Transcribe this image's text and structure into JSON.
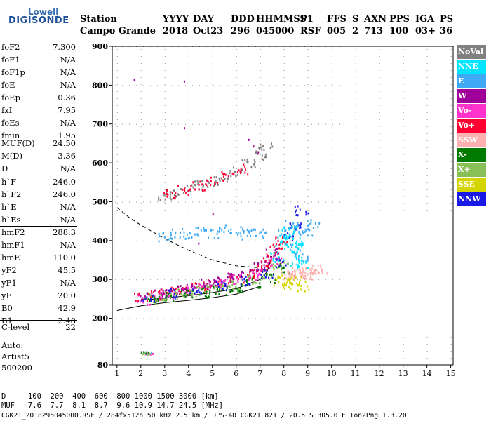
{
  "logo": {
    "top": "Lowell",
    "bottom": "DIGISONDE"
  },
  "header": {
    "labels": [
      "Station",
      "YYYY",
      "DAY",
      "DDD",
      "HHMMSS",
      "P1",
      "FFS",
      "S",
      "AXN",
      "PPS",
      "IGA",
      "PS"
    ],
    "values": [
      "Campo Grande",
      "2018",
      "Oct23",
      "296",
      "045000",
      "RSF",
      "005",
      "2",
      "713",
      "100",
      "03+",
      "36"
    ]
  },
  "params_group1": [
    {
      "name": "foF2",
      "value": "7.300"
    },
    {
      "name": "foF1",
      "value": "N/A"
    },
    {
      "name": "foF1p",
      "value": "N/A"
    },
    {
      "name": "foE",
      "value": "N/A"
    },
    {
      "name": "foEp",
      "value": "0.36"
    },
    {
      "name": "fxI",
      "value": "7.95"
    },
    {
      "name": "foEs",
      "value": "N/A"
    },
    {
      "name": "fmin",
      "value": "1.95"
    }
  ],
  "params_group2": [
    {
      "name": "MUF(D)",
      "value": "24.50"
    },
    {
      "name": "M(D)",
      "value": "3.36"
    },
    {
      "name": "D",
      "value": "N/A"
    }
  ],
  "params_group3": [
    {
      "name": "h`F",
      "value": "246.0"
    },
    {
      "name": "h`F2",
      "value": "246.0"
    },
    {
      "name": "h`E",
      "value": "N/A"
    },
    {
      "name": "h`Es",
      "value": "N/A"
    }
  ],
  "params_group4": [
    {
      "name": "hmF2",
      "value": "288.3"
    },
    {
      "name": "hmF1",
      "value": "N/A"
    },
    {
      "name": "hmE",
      "value": "110.0"
    },
    {
      "name": "yF2",
      "value": "45.5"
    },
    {
      "name": "yF1",
      "value": "N/A"
    },
    {
      "name": "yE",
      "value": "20.0"
    },
    {
      "name": "B0",
      "value": "42.9"
    },
    {
      "name": "B1",
      "value": "2.48"
    }
  ],
  "clevel": {
    "name": "C-level",
    "value": "22"
  },
  "autoscaler": {
    "line1": "Auto:",
    "line2": "Artist5",
    "line3": "500200"
  },
  "legend": [
    {
      "label": "NoVal",
      "color": "#808080"
    },
    {
      "label": "NNE",
      "color": "#00e5ff"
    },
    {
      "label": "E",
      "color": "#3fa9f5"
    },
    {
      "label": "W",
      "color": "#a0009a"
    },
    {
      "label": "Vo-",
      "color": "#ff33cc"
    },
    {
      "label": "Vo+",
      "color": "#ff0033"
    },
    {
      "label": "SSW",
      "color": "#ffb0b0"
    },
    {
      "label": "X-",
      "color": "#007a00"
    },
    {
      "label": "X+",
      "color": "#88c057"
    },
    {
      "label": "SSE",
      "color": "#d4d400"
    },
    {
      "label": "NNW",
      "color": "#1a1ae6"
    }
  ],
  "footer": {
    "line1": "D     100  200  400  600  800 1000 1500 3000 [km]",
    "line2": "MUF   7.6  7.7  8.1  8.7  9.6 10.9 14.7 24.5 [MHz]",
    "line3": "CGK21_2018296045000.RSF / 284fx512h 50 kHz 2.5 km / DPS-4D CGK21 821 / 20.5 S 305.0 E Ion2Png 1.3.20"
  },
  "chart_data": {
    "type": "scatter",
    "title": "",
    "xlabel": "",
    "ylabel": "",
    "xlim": [
      0.8,
      15.1
    ],
    "ylim": [
      80,
      900
    ],
    "x_ticks": [
      1,
      2,
      3,
      4,
      5,
      6,
      7,
      8,
      9,
      10,
      11,
      12,
      13,
      14,
      15
    ],
    "y_ticks": [
      80,
      200,
      300,
      400,
      500,
      600,
      700,
      800,
      900
    ],
    "series": [
      {
        "name": "Vo+ (F-trace)",
        "color": "#ff0033",
        "x": [
          2.0,
          2.5,
          3.0,
          3.5,
          4.0,
          4.5,
          5.0,
          5.5,
          6.0,
          6.5,
          7.0,
          7.3,
          7.5,
          7.7,
          7.9
        ],
        "y": [
          255,
          262,
          268,
          272,
          278,
          283,
          290,
          297,
          305,
          315,
          330,
          345,
          360,
          380,
          400
        ]
      },
      {
        "name": "Vo- (F-trace)",
        "color": "#ff33cc",
        "x": [
          2.1,
          2.6,
          3.1,
          3.6,
          4.1,
          4.6,
          5.1,
          5.6,
          6.1,
          6.6,
          7.1,
          7.6
        ],
        "y": [
          250,
          258,
          264,
          270,
          275,
          282,
          288,
          295,
          303,
          312,
          325,
          350
        ]
      },
      {
        "name": "W",
        "color": "#a0009a",
        "x": [
          2.2,
          2.8,
          3.4,
          4.0,
          4.6,
          5.2,
          5.8,
          6.4,
          7.0,
          7.5
        ],
        "y": [
          260,
          268,
          275,
          282,
          290,
          297,
          305,
          318,
          335,
          370
        ]
      },
      {
        "name": "X+",
        "color": "#88c057",
        "x": [
          2.4,
          3.0,
          3.6,
          4.2,
          4.8,
          5.4,
          6.0,
          6.6,
          7.2,
          7.8
        ],
        "y": [
          252,
          258,
          264,
          270,
          276,
          282,
          290,
          300,
          312,
          340
        ]
      },
      {
        "name": "X-",
        "color": "#007a00",
        "x": [
          2.5,
          3.2,
          3.9,
          4.6,
          5.3,
          6.0,
          6.7,
          7.4,
          8.0
        ],
        "y": [
          250,
          256,
          262,
          268,
          275,
          283,
          292,
          305,
          330
        ]
      },
      {
        "name": "NNW",
        "color": "#1a1ae6",
        "x": [
          2.3,
          3.3,
          4.3,
          5.3,
          6.3,
          7.3,
          7.8,
          8.1,
          8.5,
          8.7
        ],
        "y": [
          256,
          266,
          276,
          286,
          298,
          318,
          345,
          410,
          440,
          480
        ]
      },
      {
        "name": "E",
        "color": "#3fa9f5",
        "x": [
          3.0,
          3.5,
          4.0,
          4.5,
          5.0,
          5.5,
          6.0,
          6.5,
          7.0,
          8.0,
          8.3,
          8.6,
          8.9,
          9.2,
          8.4,
          8.7
        ],
        "y": [
          410,
          420,
          415,
          425,
          420,
          430,
          425,
          418,
          422,
          420,
          440,
          430,
          425,
          445,
          380,
          360
        ]
      },
      {
        "name": "NNE",
        "color": "#00e5ff",
        "x": [
          7.7,
          7.9,
          8.1,
          8.3,
          8.5,
          8.7,
          8.2,
          8.6
        ],
        "y": [
          360,
          390,
          410,
          380,
          350,
          340,
          430,
          400
        ]
      },
      {
        "name": "SSW",
        "color": "#ffb0b0",
        "x": [
          8.1,
          8.4,
          8.7,
          9.0,
          9.3,
          9.5,
          8.6,
          8.9
        ],
        "y": [
          315,
          320,
          322,
          318,
          325,
          330,
          310,
          312
        ]
      },
      {
        "name": "SSE",
        "color": "#d4d400",
        "x": [
          7.8,
          8.0,
          8.2,
          8.5,
          8.8
        ],
        "y": [
          295,
          300,
          290,
          298,
          285
        ]
      },
      {
        "name": "NoVal",
        "color": "#808080",
        "x": [
          3.0,
          3.5,
          4.0,
          4.5,
          5.0,
          5.5,
          6.0,
          6.5,
          7.0,
          7.2
        ],
        "y": [
          518,
          525,
          535,
          545,
          555,
          565,
          580,
          600,
          620,
          640
        ]
      },
      {
        "name": "Vo+ (2nd hop)",
        "color": "#ff0033",
        "x": [
          3.2,
          3.8,
          4.4,
          5.0,
          5.6,
          6.2
        ],
        "y": [
          522,
          532,
          542,
          555,
          568,
          585
        ]
      }
    ],
    "lines": [
      {
        "name": "dashed",
        "style": "dashed",
        "x": [
          1.0,
          1.5,
          2.0,
          3.0,
          4.0,
          5.0,
          6.0,
          7.0
        ],
        "y": [
          485,
          460,
          440,
          405,
          375,
          350,
          335,
          330
        ]
      },
      {
        "name": "profile",
        "style": "solid",
        "x": [
          1.0,
          2.0,
          3.0,
          4.0,
          5.0,
          6.0,
          7.0
        ],
        "y": [
          220,
          232,
          240,
          246,
          253,
          262,
          282
        ]
      },
      {
        "name": "model",
        "style": "solid",
        "x": [
          2.0,
          3.0,
          4.0,
          5.0,
          6.0,
          7.0,
          7.3,
          7.5
        ],
        "y": [
          246,
          252,
          258,
          266,
          276,
          300,
          320,
          360
        ]
      }
    ],
    "es_points": {
      "x": [
        2.0,
        2.1,
        2.2,
        2.3
      ],
      "y": [
        110,
        112,
        108,
        111
      ]
    },
    "stray_points": {
      "x": [
        1.7,
        3.8,
        3.8,
        4.4,
        6.5,
        6.7,
        6.9,
        5.0
      ],
      "y": [
        816,
        812,
        692,
        395,
        662,
        645,
        630,
        470
      ]
    }
  }
}
